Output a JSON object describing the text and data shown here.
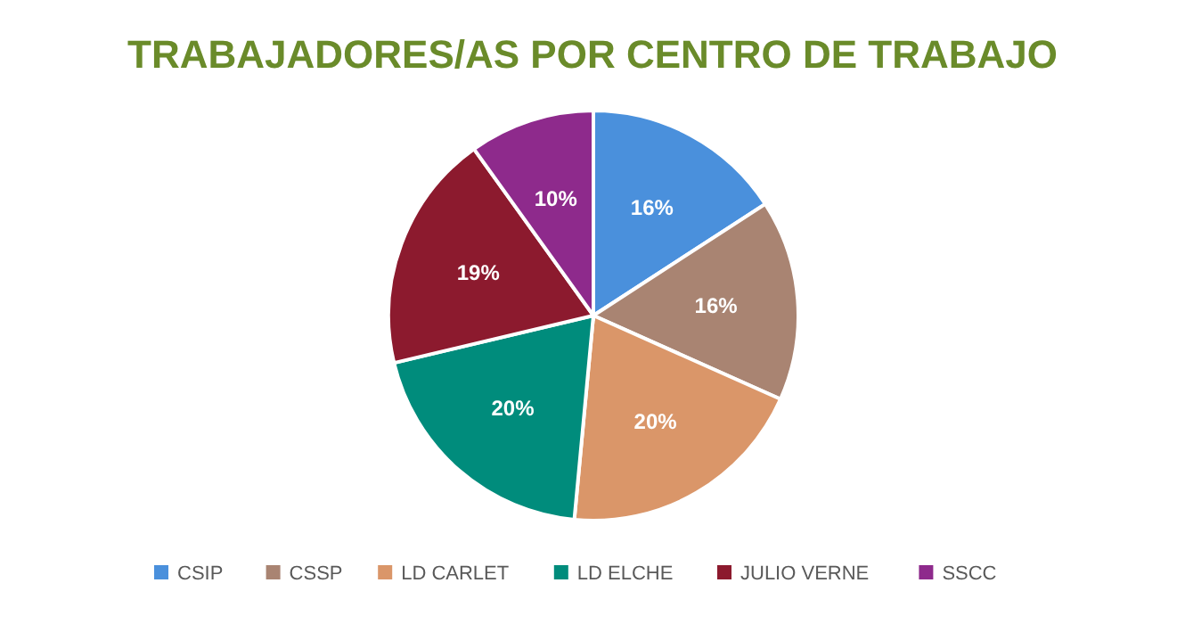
{
  "chart_data": {
    "type": "pie",
    "title": "TRABAJADORES/AS POR CENTRO DE TRABAJO",
    "categories": [
      "CSIP",
      "CSSP",
      "LD CARLET",
      "LD ELCHE",
      "JULIO VERNE",
      "SSCC"
    ],
    "values": [
      16,
      16,
      20,
      20,
      19,
      10
    ],
    "value_labels": [
      "16%",
      "16%",
      "20%",
      "20%",
      "19%",
      "10%"
    ],
    "colors": [
      "#4a90dc",
      "#a98472",
      "#da9669",
      "#008c7c",
      "#8c1a2e",
      "#8e2a8c"
    ],
    "legend": "bottom"
  }
}
